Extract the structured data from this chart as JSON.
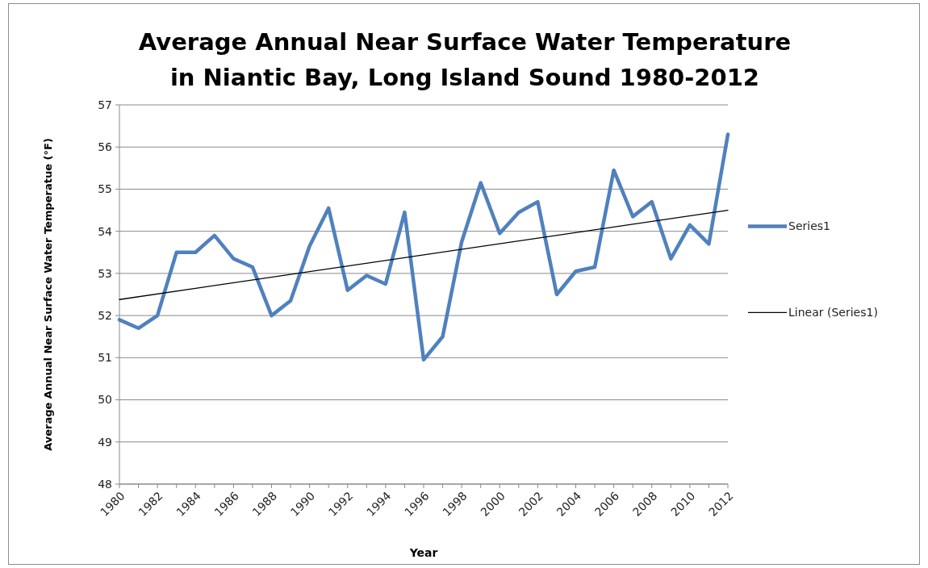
{
  "chart_data": {
    "type": "line",
    "title": "Average Annual Near Surface Water Temperature\nin Niantic Bay, Long Island Sound 1980-2012",
    "xlabel": "Year",
    "ylabel": "Average Annual Near Surface Water Temperatue (°F)",
    "x": [
      1980,
      1981,
      1982,
      1983,
      1984,
      1985,
      1986,
      1987,
      1988,
      1989,
      1990,
      1991,
      1992,
      1993,
      1994,
      1995,
      1996,
      1997,
      1998,
      1999,
      2000,
      2001,
      2002,
      2003,
      2004,
      2005,
      2006,
      2007,
      2008,
      2009,
      2010,
      2011,
      2012
    ],
    "series": [
      {
        "name": "Series1",
        "color": "#4f81bd",
        "values": [
          51.9,
          51.7,
          52.0,
          53.5,
          53.5,
          53.9,
          53.35,
          53.15,
          52.0,
          52.35,
          53.65,
          54.55,
          52.6,
          52.95,
          52.75,
          54.45,
          50.95,
          51.5,
          53.75,
          55.15,
          53.95,
          54.45,
          54.7,
          52.5,
          53.05,
          53.15,
          55.45,
          54.35,
          54.7,
          53.35,
          54.15,
          53.7,
          56.3
        ]
      },
      {
        "name": "Linear (Series1)",
        "color": "#000000",
        "x": [
          1980,
          2012
        ],
        "values": [
          52.38,
          54.5
        ]
      }
    ],
    "xlim": [
      1980,
      2012
    ],
    "xticks": [
      1980,
      {
        "value": 1981,
        "label": null
      },
      1982,
      {
        "value": 1983,
        "label": null
      },
      1984,
      {
        "value": 1985,
        "label": null
      },
      1986,
      {
        "value": 1987,
        "label": null
      },
      1988,
      {
        "value": 1989,
        "label": null
      },
      1990,
      {
        "value": 1991,
        "label": null
      },
      1992,
      {
        "value": 1993,
        "label": null
      },
      1994,
      {
        "value": 1995,
        "label": null
      },
      1996,
      {
        "value": 1997,
        "label": null
      },
      1998,
      {
        "value": 1999,
        "label": null
      },
      2000,
      {
        "value": 2001,
        "label": null
      },
      2002,
      {
        "value": 2003,
        "label": null
      },
      2004,
      {
        "value": 2005,
        "label": null
      },
      2006,
      {
        "value": 2007,
        "label": null
      },
      2008,
      {
        "value": 2009,
        "label": null
      },
      2010,
      {
        "value": 2011,
        "label": null
      },
      2012
    ],
    "ylim": [
      48,
      57
    ],
    "yticks": [
      48,
      49,
      50,
      51,
      52,
      53,
      54,
      55,
      56,
      57
    ],
    "grid": "y",
    "legend": "right",
    "marker": "none"
  }
}
